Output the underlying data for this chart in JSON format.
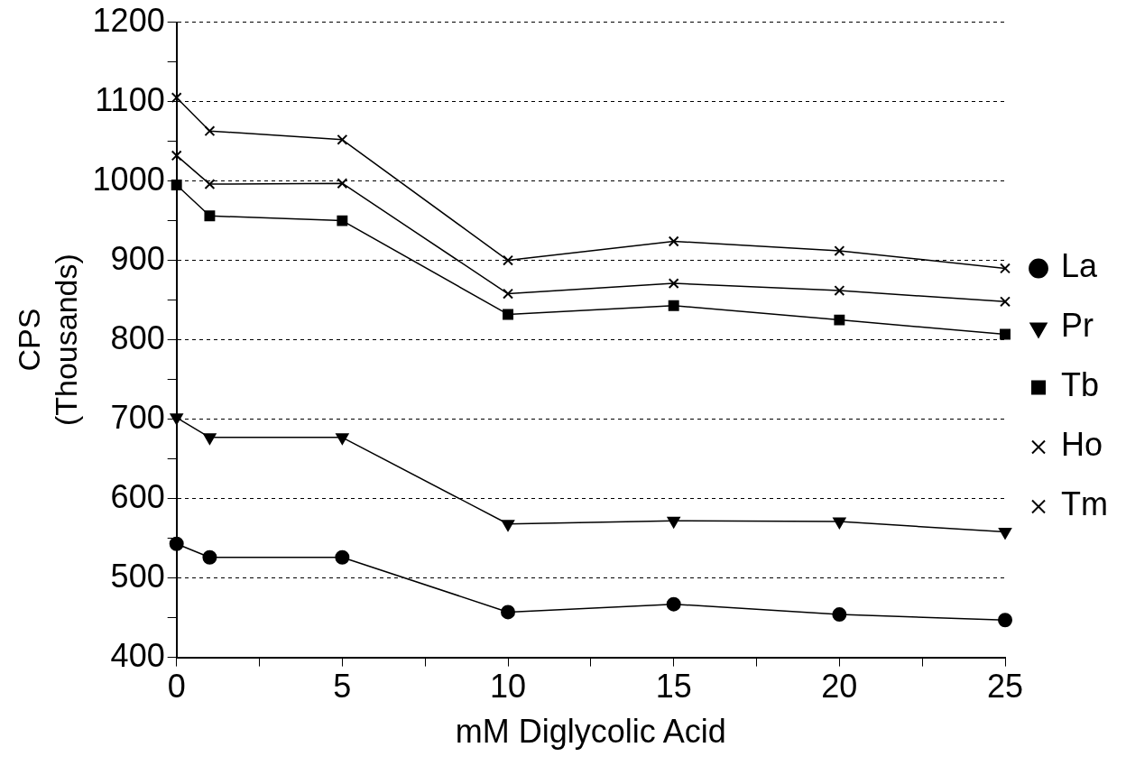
{
  "chart_data": {
    "type": "line",
    "xlabel": "mM Diglycolic Acid",
    "ylabel": "CPS\n(Thousands)",
    "x": [
      0,
      1,
      5,
      10,
      15,
      20,
      25
    ],
    "series": [
      {
        "name": "La",
        "color": "#000000",
        "marker": "circle",
        "values": [
          543,
          526,
          526,
          457,
          467,
          454,
          447
        ]
      },
      {
        "name": "Pr",
        "color": "#000000",
        "marker": "triangle",
        "values": [
          702,
          677,
          677,
          568,
          572,
          571,
          558
        ]
      },
      {
        "name": "Tb",
        "color": "#000000",
        "marker": "square",
        "values": [
          995,
          956,
          950,
          832,
          843,
          825,
          807
        ]
      },
      {
        "name": "Ho",
        "color": "#000000",
        "marker": "cross",
        "values": [
          1032,
          996,
          997,
          858,
          871,
          862,
          848
        ]
      },
      {
        "name": "Tm",
        "color": "#000000",
        "marker": "cross",
        "values": [
          1105,
          1063,
          1052,
          900,
          924,
          912,
          890
        ]
      }
    ],
    "xlim": [
      0,
      25
    ],
    "xticks": [
      0,
      {
        "value": 2.5,
        "label": null
      },
      5,
      {
        "value": 7.5,
        "label": null
      },
      10,
      {
        "value": 12.5,
        "label": null
      },
      15,
      {
        "value": 17.5,
        "label": null
      },
      20,
      {
        "value": 22.5,
        "label": null
      },
      25
    ],
    "ylim": [
      400,
      1200
    ],
    "yticks": [
      400,
      {
        "value": 450,
        "label": null
      },
      500,
      {
        "value": 550,
        "label": null
      },
      600,
      {
        "value": 650,
        "label": null
      },
      700,
      {
        "value": 750,
        "label": null
      },
      800,
      {
        "value": 850,
        "label": null
      },
      900,
      {
        "value": 950,
        "label": null
      },
      1000,
      {
        "value": 1050,
        "label": null
      },
      1100,
      {
        "value": 1150,
        "label": null
      },
      1200
    ],
    "grid": "y",
    "legend": "right",
    "line_style": "solid"
  }
}
